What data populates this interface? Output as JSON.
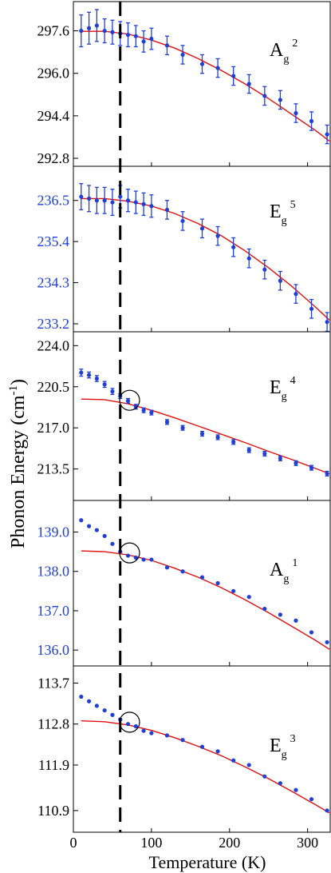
{
  "figure": {
    "ylabel_main": "Phonon Energy (cm",
    "ylabel_sup": "-1",
    "ylabel_tail": ")",
    "xlabel": "Temperature (K)",
    "dashed_line_T": 60,
    "xlim": [
      0,
      330
    ],
    "xticks": [
      "0",
      "100",
      "200",
      "300"
    ],
    "colors": {
      "data": "#1f3fd6",
      "fit": "#e01010",
      "axis": "#000000",
      "blue_ticks": "#1f3fd6"
    }
  },
  "chart_data": [
    {
      "type": "scatter",
      "mode": "Ag2",
      "label_main": "A",
      "label_sub": "g",
      "label_sup": "2",
      "ylim": [
        292.8,
        298.4
      ],
      "yticks": [
        "292.8",
        "294.4",
        "296.0",
        "297.6"
      ],
      "tick_color": "black",
      "errorbars": true,
      "x": [
        10,
        20,
        30,
        40,
        50,
        60,
        70,
        80,
        90,
        100,
        120,
        140,
        165,
        185,
        205,
        225,
        245,
        265,
        285,
        305,
        325
      ],
      "y": [
        297.6,
        297.7,
        297.8,
        297.6,
        297.55,
        297.5,
        297.45,
        297.4,
        297.2,
        297.3,
        297.05,
        296.7,
        296.35,
        296.2,
        295.9,
        295.6,
        295.15,
        295.0,
        294.5,
        294.2,
        293.7
      ],
      "err": [
        0.6,
        0.6,
        0.6,
        0.45,
        0.45,
        0.45,
        0.45,
        0.4,
        0.4,
        0.4,
        0.35,
        0.35,
        0.35,
        0.35,
        0.35,
        0.35,
        0.35,
        0.35,
        0.35,
        0.35,
        0.35
      ],
      "fit_x": [
        10,
        40,
        70,
        100,
        130,
        160,
        190,
        220,
        250,
        280,
        310,
        328
      ],
      "fit_y": [
        297.58,
        297.58,
        297.48,
        297.25,
        296.95,
        296.55,
        296.1,
        295.6,
        295.05,
        294.45,
        293.85,
        293.45
      ]
    },
    {
      "type": "scatter",
      "mode": "Eg5",
      "label_main": "E",
      "label_sub": "g",
      "label_sup": "5",
      "ylim": [
        233.2,
        237.2
      ],
      "yticks": [
        "233.2",
        "234.3",
        "235.4",
        "236.5"
      ],
      "tick_color": "blue",
      "errorbars": true,
      "x": [
        10,
        20,
        30,
        40,
        50,
        60,
        70,
        80,
        90,
        100,
        120,
        140,
        165,
        185,
        205,
        225,
        245,
        265,
        285,
        305,
        325
      ],
      "y": [
        236.6,
        236.55,
        236.5,
        236.5,
        236.45,
        236.6,
        236.5,
        236.45,
        236.4,
        236.35,
        236.25,
        235.95,
        235.75,
        235.55,
        235.25,
        234.95,
        234.65,
        234.35,
        234.0,
        233.6,
        233.25
      ],
      "err": [
        0.35,
        0.35,
        0.35,
        0.35,
        0.35,
        0.3,
        0.3,
        0.3,
        0.3,
        0.3,
        0.25,
        0.25,
        0.25,
        0.25,
        0.25,
        0.25,
        0.25,
        0.25,
        0.25,
        0.25,
        0.25
      ],
      "fit_x": [
        10,
        40,
        70,
        100,
        130,
        160,
        190,
        220,
        250,
        280,
        310,
        328
      ],
      "fit_y": [
        236.55,
        236.55,
        236.48,
        236.35,
        236.15,
        235.88,
        235.55,
        235.15,
        234.7,
        234.2,
        233.65,
        233.3
      ]
    },
    {
      "type": "scatter",
      "mode": "Eg4",
      "label_main": "E",
      "label_sub": "g",
      "label_sup": "4",
      "ylim": [
        211.5,
        224.5
      ],
      "yticks": [
        "213.5",
        "217.0",
        "220.5",
        "224.0"
      ],
      "tick_color": "black",
      "errorbars": true,
      "x": [
        10,
        20,
        30,
        40,
        50,
        60,
        70,
        80,
        90,
        100,
        120,
        140,
        165,
        185,
        205,
        225,
        245,
        265,
        285,
        305,
        325
      ],
      "y": [
        221.7,
        221.5,
        221.2,
        220.7,
        220.1,
        219.7,
        219.3,
        218.8,
        218.5,
        218.3,
        217.5,
        217.0,
        216.5,
        216.2,
        215.8,
        215.1,
        214.8,
        214.4,
        214.0,
        213.6,
        213.1
      ],
      "err": [
        0.3,
        0.25,
        0.25,
        0.25,
        0.25,
        0.2,
        0.2,
        0.2,
        0.2,
        0.2,
        0.2,
        0.2,
        0.2,
        0.2,
        0.2,
        0.2,
        0.2,
        0.2,
        0.2,
        0.2,
        0.2
      ],
      "fit_x": [
        10,
        40,
        70,
        100,
        130,
        160,
        190,
        220,
        250,
        280,
        310,
        328
      ],
      "fit_y": [
        219.45,
        219.4,
        219.05,
        218.5,
        217.85,
        217.15,
        216.45,
        215.75,
        215.0,
        214.3,
        213.55,
        213.1
      ]
    },
    {
      "type": "scatter",
      "mode": "Ag1",
      "label_main": "A",
      "label_sub": "g",
      "label_sup": "1",
      "ylim": [
        135.8,
        139.6
      ],
      "yticks": [
        "136.0",
        "137.0",
        "138.0",
        "139.0"
      ],
      "tick_color": "blue",
      "errorbars": false,
      "x": [
        10,
        20,
        30,
        40,
        50,
        60,
        70,
        80,
        90,
        100,
        120,
        140,
        165,
        185,
        205,
        225,
        245,
        265,
        285,
        305,
        325
      ],
      "y": [
        139.3,
        139.15,
        139.05,
        138.9,
        138.7,
        138.5,
        138.4,
        138.35,
        138.3,
        138.3,
        138.1,
        138.0,
        137.85,
        137.7,
        137.5,
        137.35,
        137.05,
        136.9,
        136.75,
        136.45,
        136.2
      ],
      "fit_x": [
        10,
        40,
        70,
        100,
        130,
        160,
        190,
        220,
        250,
        280,
        310,
        328
      ],
      "fit_y": [
        138.52,
        138.5,
        138.42,
        138.28,
        138.08,
        137.85,
        137.58,
        137.28,
        136.95,
        136.6,
        136.25,
        136.02
      ]
    },
    {
      "type": "scatter",
      "mode": "Eg3",
      "label_main": "E",
      "label_sub": "g",
      "label_sup": "3",
      "ylim": [
        110.6,
        113.9
      ],
      "yticks": [
        "110.9",
        "111.9",
        "112.8",
        "113.7"
      ],
      "tick_color": "black",
      "errorbars": false,
      "x": [
        10,
        20,
        30,
        40,
        50,
        60,
        70,
        80,
        90,
        100,
        120,
        140,
        165,
        185,
        205,
        225,
        245,
        265,
        285,
        305,
        325
      ],
      "y": [
        113.4,
        113.3,
        113.2,
        113.1,
        113.0,
        112.9,
        112.8,
        112.75,
        112.65,
        112.6,
        112.55,
        112.45,
        112.3,
        112.2,
        112.0,
        111.9,
        111.65,
        111.5,
        111.35,
        111.15,
        110.9
      ],
      "fit_x": [
        10,
        40,
        70,
        100,
        130,
        160,
        190,
        220,
        250,
        280,
        310,
        328
      ],
      "fit_y": [
        112.87,
        112.85,
        112.78,
        112.66,
        112.5,
        112.31,
        112.1,
        111.86,
        111.6,
        111.32,
        111.03,
        110.85
      ]
    }
  ]
}
